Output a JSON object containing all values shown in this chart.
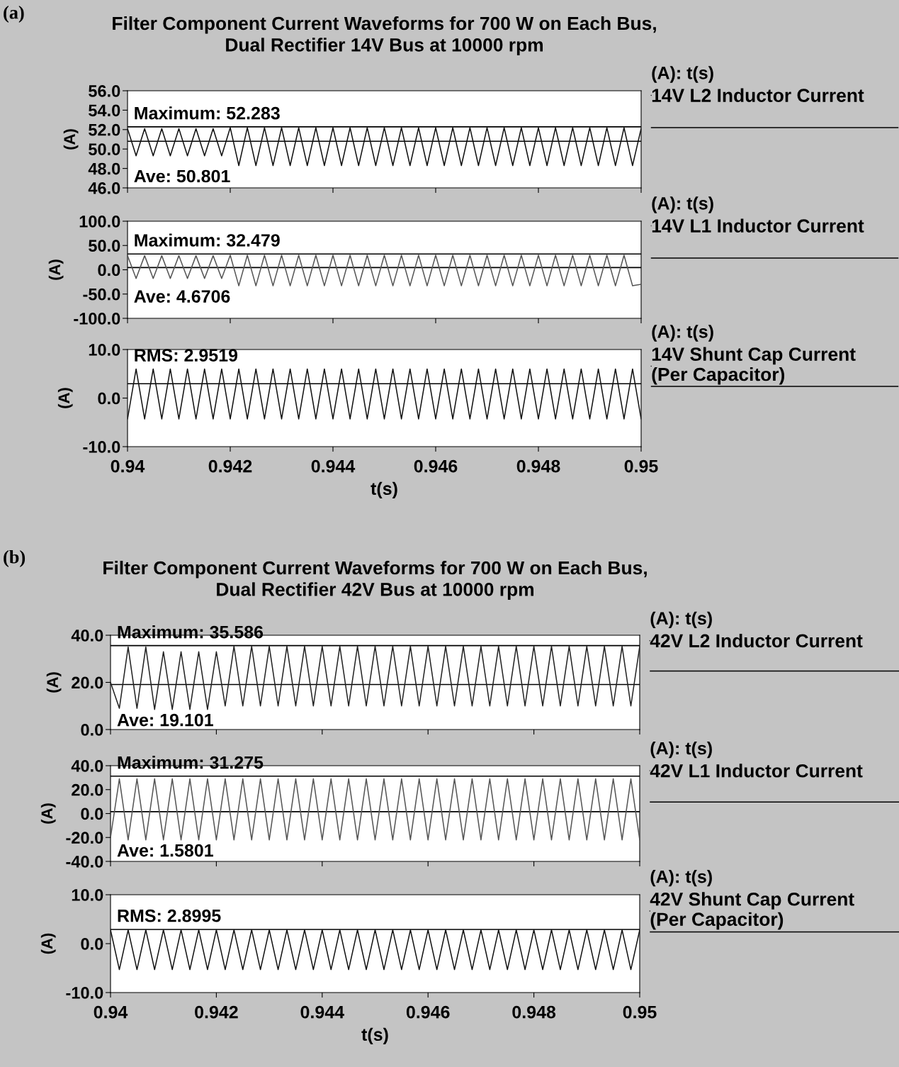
{
  "chart_data": [
    {
      "type": "line",
      "title": "Filter Component Current Waveforms for 700 W on Each Bus,\nDual Rectifier 14V Bus at 10000 rpm",
      "annotations": [
        "(a)"
      ],
      "ylabel": "(A)",
      "legend_title": "(A): t(s)",
      "legend": "right",
      "grid": false,
      "tick_labels": "y",
      "xlim": [
        0.94,
        0.95
      ],
      "xticks": [
        0.94,
        0.942,
        0.944,
        0.946,
        0.948,
        0.95
      ],
      "ylim": [
        46,
        56
      ],
      "yticks": [
        {
          "value": 46,
          "label": "46.0"
        },
        {
          "value": 48,
          "label": "48.0"
        },
        {
          "value": 50,
          "label": "50.0"
        },
        {
          "value": 52,
          "label": "52.0"
        },
        {
          "value": 54,
          "label": "54.0"
        },
        {
          "value": 56,
          "label": "56.0"
        }
      ],
      "ref_lines": [
        {
          "axis": "y",
          "value": 52.283,
          "label": "Maximum: 52.283"
        },
        {
          "axis": "y",
          "value": 50.801,
          "label": "Ave: 50.801"
        }
      ],
      "series": [
        {
          "name": "14V L2 Inductor Current",
          "color": "#111111",
          "x": [
            0.94,
            0.940167,
            0.940333,
            0.9405,
            0.940667,
            0.940833,
            0.941,
            0.941167,
            0.941333,
            0.9415,
            0.941667,
            0.941833,
            0.942,
            0.942167,
            0.942333,
            0.9425,
            0.942667,
            0.942833,
            0.943,
            0.943167,
            0.943333,
            0.9435,
            0.943667,
            0.943833,
            0.944,
            0.944167,
            0.944333,
            0.9445,
            0.944667,
            0.944833,
            0.945,
            0.945167,
            0.945333,
            0.9455,
            0.945667,
            0.945833,
            0.946,
            0.946167,
            0.946333,
            0.9465,
            0.946667,
            0.946833,
            0.947,
            0.947167,
            0.947333,
            0.9475,
            0.947667,
            0.947833,
            0.948,
            0.948167,
            0.948333,
            0.9485,
            0.948667,
            0.948833,
            0.949,
            0.949167,
            0.949333,
            0.9495,
            0.949667,
            0.949833,
            0.95
          ],
          "values": [
            52.1,
            49.3,
            52.1,
            49.3,
            52.1,
            49.3,
            52.1,
            49.3,
            52.1,
            49.3,
            52.1,
            49.3,
            52.2,
            48.3,
            52.2,
            48.3,
            52.2,
            48.3,
            52.2,
            48.3,
            52.2,
            48.3,
            52.2,
            48.3,
            52.2,
            48.3,
            52.2,
            48.3,
            52.2,
            48.3,
            52.2,
            48.3,
            52.2,
            48.3,
            52.2,
            48.3,
            52.2,
            48.3,
            52.2,
            48.3,
            52.2,
            48.3,
            52.2,
            48.3,
            52.2,
            48.3,
            52.2,
            48.3,
            52.2,
            48.3,
            52.2,
            48.3,
            52.2,
            48.3,
            52.2,
            48.3,
            52.2,
            48.3,
            52.2,
            48.3,
            52.1
          ]
        }
      ]
    },
    {
      "type": "line",
      "ylabel": "(A)",
      "legend_title": "(A): t(s)",
      "legend": "right",
      "grid": false,
      "tick_labels": "y",
      "xlim": [
        0.94,
        0.95
      ],
      "xticks": [
        0.94,
        0.942,
        0.944,
        0.946,
        0.948,
        0.95
      ],
      "ylim": [
        -100,
        100
      ],
      "yticks": [
        {
          "value": -100,
          "label": "-100.0"
        },
        {
          "value": -50,
          "label": "-50.0"
        },
        {
          "value": 0,
          "label": "0.0"
        },
        {
          "value": 50,
          "label": "50.0"
        },
        {
          "value": 100,
          "label": "100.0"
        }
      ],
      "ref_lines": [
        {
          "axis": "y",
          "value": 32.479,
          "label": "Maximum: 32.479"
        },
        {
          "axis": "y",
          "value": 4.6706,
          "label": "Ave: 4.6706"
        }
      ],
      "series": [
        {
          "name": "14V L1 Inductor Current",
          "color": "#555555",
          "x": [
            0.94,
            0.940167,
            0.940333,
            0.9405,
            0.940667,
            0.940833,
            0.941,
            0.941167,
            0.941333,
            0.9415,
            0.941667,
            0.941833,
            0.942,
            0.942167,
            0.942333,
            0.9425,
            0.942667,
            0.942833,
            0.943,
            0.943167,
            0.943333,
            0.9435,
            0.943667,
            0.943833,
            0.944,
            0.944167,
            0.944333,
            0.9445,
            0.944667,
            0.944833,
            0.945,
            0.945167,
            0.945333,
            0.9455,
            0.945667,
            0.945833,
            0.946,
            0.946167,
            0.946333,
            0.9465,
            0.946667,
            0.946833,
            0.947,
            0.947167,
            0.947333,
            0.9475,
            0.947667,
            0.947833,
            0.948,
            0.948167,
            0.948333,
            0.9485,
            0.948667,
            0.948833,
            0.949,
            0.949167,
            0.949333,
            0.9495,
            0.949667,
            0.949833,
            0.95
          ],
          "values": [
            29,
            -18,
            29,
            -18,
            29,
            -18,
            29,
            -18,
            29,
            -18,
            29,
            -18,
            30,
            -33,
            30,
            -33,
            30,
            -33,
            30,
            -33,
            30,
            -33,
            30,
            -33,
            30,
            -33,
            30,
            -33,
            30,
            -33,
            30,
            -33,
            30,
            -33,
            30,
            -33,
            30,
            -33,
            30,
            -33,
            30,
            -33,
            30,
            -33,
            30,
            -33,
            30,
            -33,
            30,
            -33,
            30,
            -33,
            30,
            -33,
            30,
            -33,
            30,
            -33,
            30,
            -33,
            -30
          ]
        }
      ]
    },
    {
      "type": "line",
      "ylabel": "(A)",
      "xlabel": "t(s)",
      "legend_title": "(A): t(s)",
      "legend": "right",
      "grid": false,
      "xlim": [
        0.94,
        0.95
      ],
      "xticks": [
        0.94,
        0.942,
        0.944,
        0.946,
        0.948,
        0.95
      ],
      "ylim": [
        -10,
        10
      ],
      "yticks": [
        {
          "value": -10,
          "label": "-10.0"
        },
        {
          "value": 0,
          "label": "0.0"
        },
        {
          "value": 10,
          "label": "10.0"
        }
      ],
      "ref_lines": [
        {
          "axis": "y",
          "value": 2.9519,
          "label": "RMS: 2.9519"
        }
      ],
      "series": [
        {
          "name": "14V Shunt Cap Current\n(Per Capacitor)",
          "color": "#111111",
          "x": [
            0.94,
            0.940167,
            0.940333,
            0.9405,
            0.940667,
            0.940833,
            0.941,
            0.941167,
            0.941333,
            0.9415,
            0.941667,
            0.941833,
            0.942,
            0.942167,
            0.942333,
            0.9425,
            0.942667,
            0.942833,
            0.943,
            0.943167,
            0.943333,
            0.9435,
            0.943667,
            0.943833,
            0.944,
            0.944167,
            0.944333,
            0.9445,
            0.944667,
            0.944833,
            0.945,
            0.945167,
            0.945333,
            0.9455,
            0.945667,
            0.945833,
            0.946,
            0.946167,
            0.946333,
            0.9465,
            0.946667,
            0.946833,
            0.947,
            0.947167,
            0.947333,
            0.9475,
            0.947667,
            0.947833,
            0.948,
            0.948167,
            0.948333,
            0.9485,
            0.948667,
            0.948833,
            0.949,
            0.949167,
            0.949333,
            0.9495,
            0.949667,
            0.949833,
            0.95
          ],
          "values": [
            -4.3,
            6.0,
            -4.3,
            6.0,
            -4.3,
            6.0,
            -4.3,
            6.0,
            -4.3,
            6.0,
            -4.3,
            6.0,
            -4.3,
            6.0,
            -4.3,
            6.0,
            -4.3,
            6.0,
            -4.3,
            6.0,
            -4.3,
            6.0,
            -4.3,
            6.0,
            -4.3,
            6.0,
            -4.3,
            6.0,
            -4.3,
            6.0,
            -4.3,
            6.0,
            -4.3,
            6.0,
            -4.3,
            6.0,
            -4.3,
            6.0,
            -4.3,
            6.0,
            -4.3,
            6.0,
            -4.3,
            6.0,
            -4.3,
            6.0,
            -4.3,
            6.0,
            -4.3,
            6.0,
            -4.3,
            6.0,
            -4.3,
            6.0,
            -4.3,
            6.0,
            -4.3,
            6.0,
            -4.3,
            6.0,
            -4.3
          ]
        }
      ]
    },
    {
      "type": "line",
      "title": "Filter Component Current Waveforms for 700 W on Each Bus,\nDual Rectifier 42V Bus at 10000 rpm",
      "annotations": [
        "(b)"
      ],
      "ylabel": "(A)",
      "legend_title": "(A): t(s)",
      "legend": "right",
      "grid": false,
      "tick_labels": "y",
      "xlim": [
        0.94,
        0.95
      ],
      "xticks": [
        0.94,
        0.942,
        0.944,
        0.946,
        0.948,
        0.95
      ],
      "ylim": [
        0,
        40
      ],
      "yticks": [
        {
          "value": 0,
          "label": "0.0"
        },
        {
          "value": 20,
          "label": "20.0"
        },
        {
          "value": 40,
          "label": "40.0"
        }
      ],
      "ref_lines": [
        {
          "axis": "y",
          "value": 35.586,
          "label": "Maximum: 35.586"
        },
        {
          "axis": "y",
          "value": 19.101,
          "label": "Ave: 19.101"
        }
      ],
      "series": [
        {
          "name": "42V L2 Inductor Current",
          "color": "#222222",
          "x": [
            0.94,
            0.940167,
            0.940333,
            0.9405,
            0.940667,
            0.940833,
            0.941,
            0.941167,
            0.941333,
            0.9415,
            0.941667,
            0.941833,
            0.942,
            0.942167,
            0.942333,
            0.9425,
            0.942667,
            0.942833,
            0.943,
            0.943167,
            0.943333,
            0.9435,
            0.943667,
            0.943833,
            0.944,
            0.944167,
            0.944333,
            0.9445,
            0.944667,
            0.944833,
            0.945,
            0.945167,
            0.945333,
            0.9455,
            0.945667,
            0.945833,
            0.946,
            0.946167,
            0.946333,
            0.9465,
            0.946667,
            0.946833,
            0.947,
            0.947167,
            0.947333,
            0.9475,
            0.947667,
            0.947833,
            0.948,
            0.948167,
            0.948333,
            0.9485,
            0.948667,
            0.948833,
            0.949,
            0.949167,
            0.949333,
            0.9495,
            0.949667,
            0.949833,
            0.95
          ],
          "values": [
            20,
            9,
            35,
            9,
            35,
            8.5,
            33,
            8.5,
            33,
            8.5,
            33,
            8.5,
            33,
            10,
            35.3,
            10,
            35.3,
            10,
            35.3,
            10,
            35.3,
            10,
            35.3,
            10,
            35.3,
            10,
            35.3,
            10,
            35.3,
            10,
            35.3,
            10,
            35.3,
            10,
            35.3,
            10,
            35.3,
            10,
            35.3,
            10,
            35.3,
            10,
            35.3,
            10,
            35.3,
            10,
            35.3,
            10,
            35.3,
            10,
            35.3,
            10,
            35.3,
            10,
            35.3,
            10,
            35.3,
            10,
            35.3,
            10,
            35.3
          ]
        }
      ]
    },
    {
      "type": "line",
      "ylabel": "(A)",
      "legend_title": "(A): t(s)",
      "legend": "right",
      "grid": false,
      "tick_labels": "y",
      "xlim": [
        0.94,
        0.95
      ],
      "xticks": [
        0.94,
        0.942,
        0.944,
        0.946,
        0.948,
        0.95
      ],
      "ylim": [
        -40,
        40
      ],
      "yticks": [
        {
          "value": -40,
          "label": "-40.0"
        },
        {
          "value": -20,
          "label": "-20.0"
        },
        {
          "value": 0,
          "label": "0.0"
        },
        {
          "value": 20,
          "label": "20.0"
        },
        {
          "value": 40,
          "label": "40.0"
        }
      ],
      "ref_lines": [
        {
          "axis": "y",
          "value": 31.275,
          "label": "Maximum: 31.275"
        },
        {
          "axis": "y",
          "value": 1.5801,
          "label": "Ave: 1.5801"
        }
      ],
      "series": [
        {
          "name": "42V L1 Inductor Current",
          "color": "#555555",
          "x": [
            0.94,
            0.940167,
            0.940333,
            0.9405,
            0.940667,
            0.940833,
            0.941,
            0.941167,
            0.941333,
            0.9415,
            0.941667,
            0.941833,
            0.942,
            0.942167,
            0.942333,
            0.9425,
            0.942667,
            0.942833,
            0.943,
            0.943167,
            0.943333,
            0.9435,
            0.943667,
            0.943833,
            0.944,
            0.944167,
            0.944333,
            0.9445,
            0.944667,
            0.944833,
            0.945,
            0.945167,
            0.945333,
            0.9455,
            0.945667,
            0.945833,
            0.946,
            0.946167,
            0.946333,
            0.9465,
            0.946667,
            0.946833,
            0.947,
            0.947167,
            0.947333,
            0.9475,
            0.947667,
            0.947833,
            0.948,
            0.948167,
            0.948333,
            0.9485,
            0.948667,
            0.948833,
            0.949,
            0.949167,
            0.949333,
            0.9495,
            0.949667,
            0.949833,
            0.95
          ],
          "values": [
            -20,
            29,
            -22,
            29,
            -22,
            29,
            -22,
            29,
            -22,
            29,
            -22,
            29,
            -22,
            29,
            -22,
            29,
            -22,
            29,
            -22,
            29,
            -22,
            29,
            -22,
            29,
            -22,
            29,
            -22,
            29,
            -22,
            29,
            -22,
            29,
            -22,
            29,
            -22,
            29,
            -22,
            29,
            -22,
            29,
            -22,
            29,
            -22,
            29,
            -22,
            29,
            -22,
            29,
            -22,
            29,
            -22,
            29,
            -22,
            29,
            -22,
            29,
            -22,
            29,
            -22,
            29,
            -22
          ]
        }
      ]
    },
    {
      "type": "line",
      "ylabel": "(A)",
      "xlabel": "t(s)",
      "legend_title": "(A): t(s)",
      "legend": "right",
      "grid": false,
      "xlim": [
        0.94,
        0.95
      ],
      "xticks": [
        0.94,
        0.942,
        0.944,
        0.946,
        0.948,
        0.95
      ],
      "ylim": [
        -10,
        10
      ],
      "yticks": [
        {
          "value": -10,
          "label": "-10.0"
        },
        {
          "value": 0,
          "label": "0.0"
        },
        {
          "value": 10,
          "label": "10.0"
        }
      ],
      "ref_lines": [
        {
          "axis": "y",
          "value": 2.8995,
          "label": "RMS: 2.8995"
        }
      ],
      "series": [
        {
          "name": "42V Shunt Cap Current\n(Per Capacitor)",
          "color": "#111111",
          "x": [
            0.94,
            0.940167,
            0.940333,
            0.9405,
            0.940667,
            0.940833,
            0.941,
            0.941167,
            0.941333,
            0.9415,
            0.941667,
            0.941833,
            0.942,
            0.942167,
            0.942333,
            0.9425,
            0.942667,
            0.942833,
            0.943,
            0.943167,
            0.943333,
            0.9435,
            0.943667,
            0.943833,
            0.944,
            0.944167,
            0.944333,
            0.9445,
            0.944667,
            0.944833,
            0.945,
            0.945167,
            0.945333,
            0.9455,
            0.945667,
            0.945833,
            0.946,
            0.946167,
            0.946333,
            0.9465,
            0.946667,
            0.946833,
            0.947,
            0.947167,
            0.947333,
            0.9475,
            0.947667,
            0.947833,
            0.948,
            0.948167,
            0.948333,
            0.9485,
            0.948667,
            0.948833,
            0.949,
            0.949167,
            0.949333,
            0.9495,
            0.949667,
            0.949833,
            0.95
          ],
          "values": [
            2.8,
            -5.3,
            2.8,
            -5.3,
            2.8,
            -5.3,
            2.8,
            -5.3,
            2.8,
            -5.3,
            2.8,
            -5.3,
            2.8,
            -5.3,
            2.8,
            -5.3,
            2.8,
            -5.3,
            2.8,
            -5.3,
            2.8,
            -5.3,
            2.8,
            -5.3,
            2.8,
            -5.3,
            2.8,
            -5.3,
            2.8,
            -5.3,
            2.8,
            -5.3,
            2.8,
            -5.3,
            2.8,
            -5.3,
            2.8,
            -5.3,
            2.8,
            -5.3,
            2.8,
            -5.3,
            2.8,
            -5.3,
            2.8,
            -5.3,
            2.8,
            -5.3,
            2.8,
            -5.3,
            2.8,
            -5.3,
            2.8,
            -5.3,
            2.8,
            -5.3,
            2.8,
            -5.3,
            2.8,
            -5.3,
            2.8
          ]
        }
      ]
    }
  ]
}
